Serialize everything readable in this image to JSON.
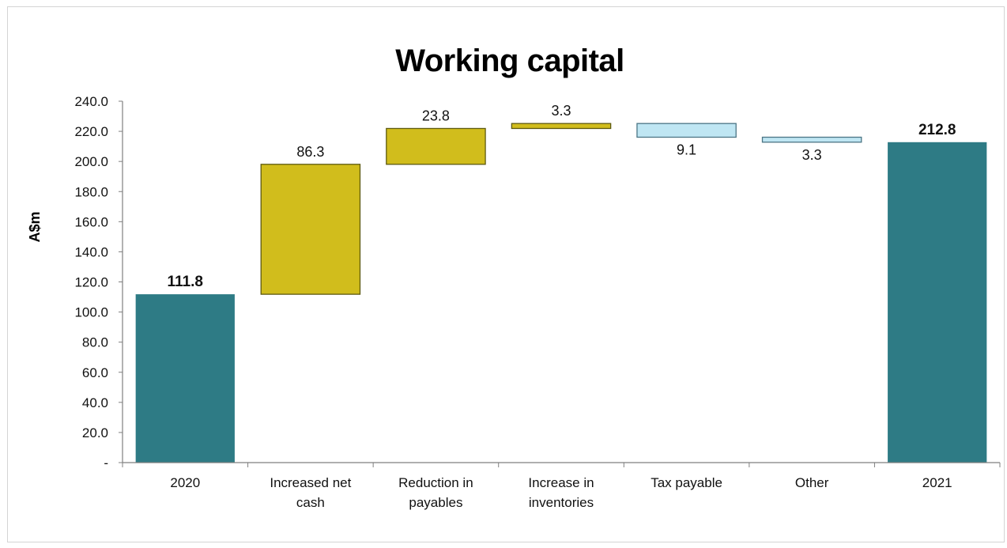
{
  "chart_data": {
    "type": "bar",
    "subtype": "waterfall",
    "title": "Working capital",
    "xlabel": "",
    "ylabel": "A$m",
    "ylim": [
      0,
      240
    ],
    "ytick_labels": [
      "-",
      "20.0",
      "40.0",
      "60.0",
      "80.0",
      "100.0",
      "120.0",
      "140.0",
      "160.0",
      "180.0",
      "200.0",
      "220.0",
      "240.0"
    ],
    "categories": [
      [
        "2020"
      ],
      [
        "Increased net",
        "cash"
      ],
      [
        "Reduction in",
        "payables"
      ],
      [
        "Increase in",
        "inventories"
      ],
      [
        "Tax payable"
      ],
      [
        "Other"
      ],
      [
        "2021"
      ]
    ],
    "bars": [
      {
        "kind": "total",
        "value": 111.8,
        "label": "111.8"
      },
      {
        "kind": "increase",
        "value": 86.3,
        "label": "86.3"
      },
      {
        "kind": "increase",
        "value": 23.8,
        "label": "23.8"
      },
      {
        "kind": "increase",
        "value": 3.3,
        "label": "3.3"
      },
      {
        "kind": "decrease",
        "value": -9.1,
        "label": "9.1"
      },
      {
        "kind": "decrease",
        "value": -3.3,
        "label": "3.3"
      },
      {
        "kind": "total",
        "value": 212.8,
        "label": "212.8"
      }
    ],
    "colors": {
      "total": "#2e7b85",
      "increase": "#d1bd1c",
      "increase_stroke": "#5e5a10",
      "decrease": "#bfe6f3",
      "decrease_stroke": "#4b7585",
      "axis": "#7f7f7f"
    },
    "grid": false,
    "legend": "none"
  }
}
